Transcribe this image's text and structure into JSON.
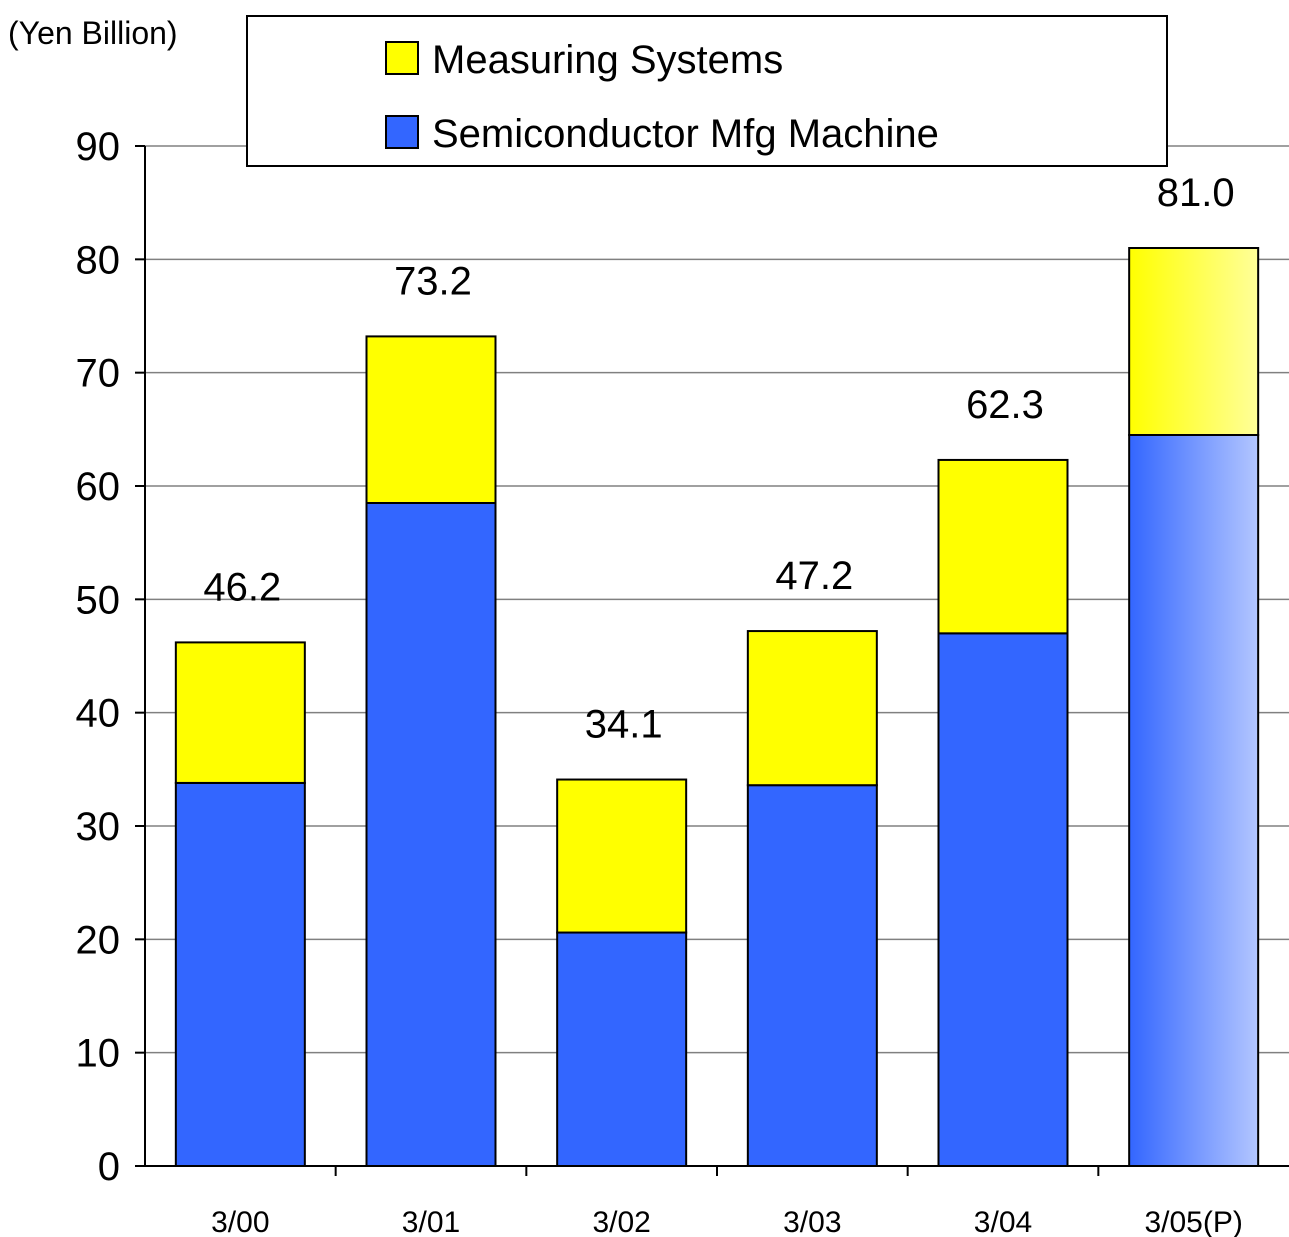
{
  "chart_data": {
    "type": "bar",
    "stacked": true,
    "unit_label": "(Yen Billion)",
    "categories": [
      "3/00",
      "3/01",
      "3/02",
      "3/03",
      "3/04",
      "3/05(P)"
    ],
    "series": [
      {
        "name": "Semiconductor Mfg Machine",
        "color": "#3366FF",
        "values": [
          33.8,
          58.5,
          20.6,
          33.6,
          47.0,
          64.5
        ]
      },
      {
        "name": "Measuring Systems",
        "color": "#FFFF00",
        "values": [
          12.4,
          14.7,
          13.5,
          13.6,
          15.3,
          16.5
        ]
      }
    ],
    "totals": [
      "46.2",
      "73.2",
      "34.1",
      "47.2",
      "62.3",
      "81.0"
    ],
    "ylim": [
      0,
      90
    ],
    "yticks": [
      0,
      10,
      20,
      30,
      40,
      50,
      60,
      70,
      80,
      90
    ],
    "grid": true,
    "legend": {
      "placement": "top-center",
      "entries": [
        "Measuring Systems",
        "Semiconductor Mfg Machine"
      ]
    },
    "projected_category": "3/05(P)"
  }
}
